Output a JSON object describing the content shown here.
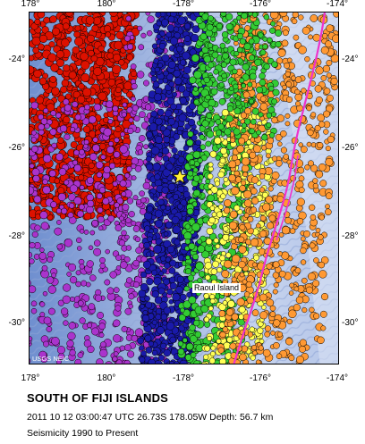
{
  "axes": {
    "top_ticks": [
      "178°",
      "180°",
      "-178°",
      "-176°",
      "-174°"
    ],
    "bottom_ticks": [
      "178°",
      "180°",
      "-178°",
      "-176°",
      "-174°"
    ],
    "left_ticks": [
      "-24°",
      "-26°",
      "-28°",
      "-30°"
    ],
    "right_ticks": [
      "-24°",
      "-26°",
      "-28°",
      "-30°"
    ]
  },
  "map": {
    "lon_range": [
      178,
      186
    ],
    "lat_range": [
      -31.1,
      -23.1
    ],
    "credit": "USGS NEIC",
    "place_label": "Raoul Island",
    "epicenter_icon": "star-icon",
    "depth_colors": [
      "#dd1100",
      "#aa33cc",
      "#1a1aaa",
      "#33cc33",
      "#ffff55",
      "#ff9933"
    ],
    "plate_boundary_color": "#ee33cc"
  },
  "caption": {
    "title": "SOUTH OF FIJI ISLANDS",
    "event_info": "2011 10 12 03:00:47 UTC 26.73S 178.05W Depth: 56.7 km",
    "seismicity": "Seismicity 1990 to Present"
  }
}
